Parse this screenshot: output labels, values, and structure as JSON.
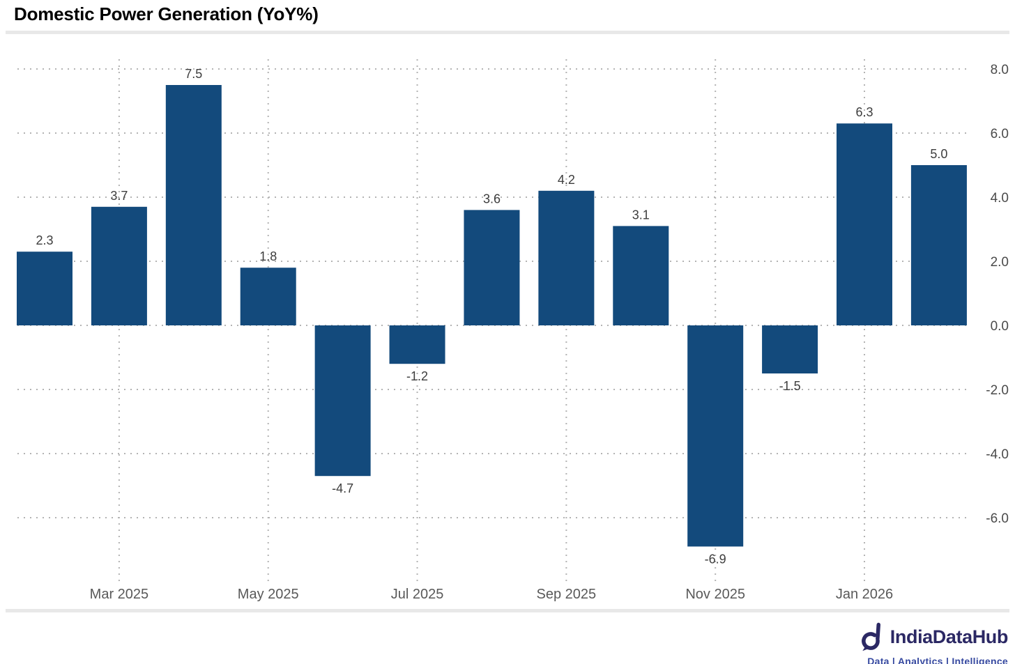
{
  "title": "Domestic Power Generation (YoY%)",
  "chart_data": {
    "type": "bar",
    "values": [
      2.3,
      3.7,
      7.5,
      1.8,
      -4.7,
      -1.2,
      3.6,
      4.2,
      3.1,
      -6.9,
      -1.5,
      6.3,
      5.0
    ],
    "bar_value_labels": [
      "2.3",
      "3.7",
      "7.5",
      "1.8",
      "-4.7",
      "-1.2",
      "3.6",
      "4.2",
      "3.1",
      "-6.9",
      "-1.5",
      "6.3",
      "5.0"
    ],
    "x_tick_labels": [
      "Mar 2025",
      "May 2025",
      "Jul 2025",
      "Sep 2025",
      "Nov 2025",
      "Jan 2026"
    ],
    "x_tick_bar_indices": [
      1,
      3,
      5,
      7,
      9,
      11
    ],
    "y_tick_labels": [
      "8.0",
      "6.0",
      "4.0",
      "2.0",
      "0.0",
      "-2.0",
      "-4.0",
      "-6.0"
    ],
    "y_tick_values": [
      8,
      6,
      4,
      2,
      0,
      -2,
      -4,
      -6
    ],
    "ylim": [
      -8.1,
      8.3
    ],
    "title": "Domestic Power Generation (YoY%)",
    "xlabel": "",
    "ylabel": "",
    "grid": "dotted",
    "legend": "none",
    "y_axis_side": "right"
  },
  "footer": {
    "brand": "IndiaDataHub",
    "tagline": "Data | Analytics | Intelligence"
  },
  "colors": {
    "bar": "#134a7c",
    "grid": "#b3b3b3",
    "value_label": "#3d3d3d",
    "y_tick_label": "#4a4a4a",
    "x_tick_label": "#595959",
    "divider": "#e8e8e8",
    "brand_navy": "#2b2864",
    "tagline_blue": "#3649a0"
  }
}
